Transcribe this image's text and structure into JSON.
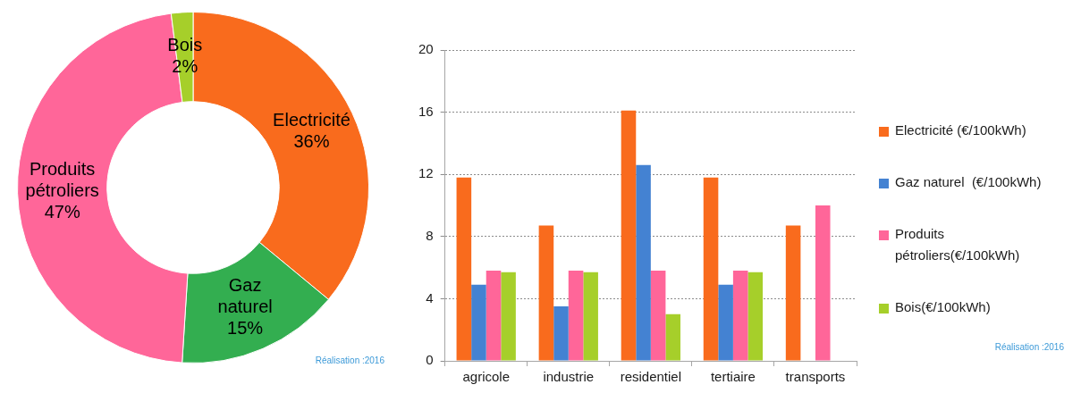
{
  "chart_data": [
    {
      "type": "donut",
      "categories": [
        "Electricité",
        "Gaz naturel",
        "Produits pétroliers",
        "Bois"
      ],
      "values": [
        36,
        15,
        47,
        2
      ],
      "colors": [
        "#f96b1d",
        "#33ae50",
        "#ff6699",
        "#a6cf2a"
      ],
      "value_labels": [
        "36%",
        "15%",
        "47%",
        "2%"
      ],
      "annotations": [
        "Réalisation :2016"
      ]
    },
    {
      "type": "bar",
      "categories": [
        "agricole",
        "industrie",
        "residentiel",
        "tertiaire",
        "transports"
      ],
      "series": [
        {
          "name": "Electricité (€/100kWh)",
          "color": "#f96b1d",
          "values": [
            11.8,
            8.7,
            16.1,
            11.8,
            8.7
          ]
        },
        {
          "name": "Gaz naturel  (€/100kWh)",
          "color": "#4482d2",
          "values": [
            4.9,
            3.5,
            12.6,
            4.9,
            null
          ]
        },
        {
          "name": "Produits pétroliers(€/100kWh)",
          "color": "#ff6699",
          "values": [
            5.8,
            5.8,
            5.8,
            5.8,
            10.0
          ]
        },
        {
          "name": "Bois(€/100kWh)",
          "color": "#a6cf2a",
          "values": [
            5.7,
            5.7,
            3.0,
            5.7,
            null
          ]
        }
      ],
      "ylim": [
        0,
        20
      ],
      "yticks": [
        0,
        4,
        8,
        12,
        16,
        20
      ],
      "grid": "y",
      "legend": "right",
      "annotations": [
        "Réalisation :2016"
      ]
    }
  ]
}
